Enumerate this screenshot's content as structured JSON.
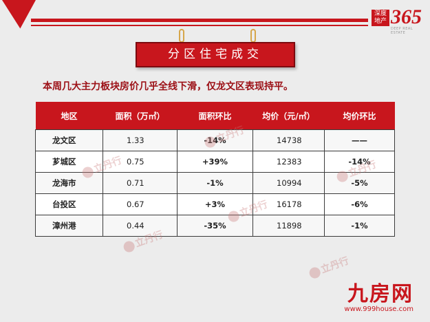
{
  "brand": {
    "box_text": "深度地产",
    "number": "365",
    "tagline": "DEEP REAL ESTATE"
  },
  "banner": {
    "title": "分区住宅成交"
  },
  "summary": "本周几大主力板块房价几乎全线下滑，仅龙文区表现持平。",
  "table": {
    "headers": [
      "地区",
      "面积（万㎡）",
      "面积环比",
      "均价（元/㎡）",
      "均价环比"
    ],
    "rows": [
      {
        "region": "龙文区",
        "area": "1.33",
        "area_change": "-14%",
        "area_trend": "neg",
        "price": "14738",
        "price_change": "——",
        "price_trend": "none"
      },
      {
        "region": "芗城区",
        "area": "0.75",
        "area_change": "+39%",
        "area_trend": "pos",
        "price": "12383",
        "price_change": "-14%",
        "price_trend": "neg"
      },
      {
        "region": "龙海市",
        "area": "0.71",
        "area_change": "-1%",
        "area_trend": "neg",
        "price": "10994",
        "price_change": "-5%",
        "price_trend": "neg"
      },
      {
        "region": "台投区",
        "area": "0.67",
        "area_change": "+3%",
        "area_trend": "pos",
        "price": "16178",
        "price_change": "-6%",
        "price_trend": "neg"
      },
      {
        "region": "漳州港",
        "area": "0.44",
        "area_change": "-35%",
        "area_trend": "neg",
        "price": "11898",
        "price_change": "-1%",
        "price_trend": "neg"
      }
    ]
  },
  "watermark": {
    "text": "立丹行"
  },
  "footer": {
    "logo": "九房网",
    "url": "www.999house.com"
  },
  "colors": {
    "accent": "#c8161d",
    "positive": "#d0121a",
    "negative": "#1e9a3a"
  }
}
